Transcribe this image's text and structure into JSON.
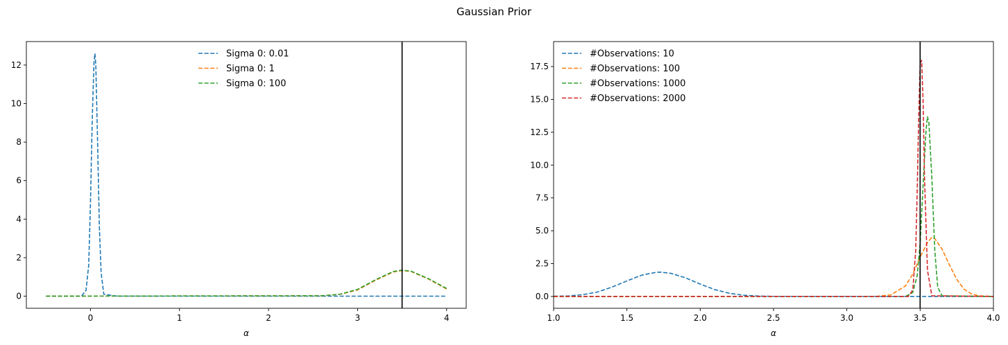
{
  "suptitle": "Gaussian Prior",
  "chart_data": [
    {
      "type": "line",
      "title": "",
      "xlabel": "α",
      "ylabel": "",
      "xlim": [
        -0.72,
        4.22
      ],
      "ylim": [
        -0.63,
        13.22
      ],
      "xticks": [
        0,
        1,
        2,
        3,
        4
      ],
      "yticks": [
        0,
        2,
        4,
        6,
        8,
        10,
        12
      ],
      "grid": false,
      "legend_position": "upper-center",
      "vline": 3.5,
      "series": [
        {
          "name": "Sigma 0: 0.01",
          "color": "#1f77b4",
          "x": [
            -0.5,
            -0.3,
            -0.1,
            -0.05,
            -0.02,
            0.0,
            0.02,
            0.04,
            0.05,
            0.06,
            0.08,
            0.1,
            0.12,
            0.15,
            0.3,
            1.0,
            2.0,
            3.0,
            4.0
          ],
          "y": [
            0,
            0,
            0,
            0.3,
            1.6,
            4.8,
            9.2,
            12.2,
            12.6,
            12.0,
            8.0,
            3.6,
            1.2,
            0.1,
            0,
            0,
            0,
            0,
            0
          ]
        },
        {
          "name": "Sigma 0: 1",
          "color": "#ff7f0e",
          "x": [
            -0.5,
            2.6,
            2.8,
            3.0,
            3.2,
            3.4,
            3.5,
            3.6,
            3.8,
            4.0
          ],
          "y": [
            0,
            0.02,
            0.09,
            0.32,
            0.82,
            1.25,
            1.33,
            1.28,
            0.88,
            0.37
          ]
        },
        {
          "name": "Sigma 0: 100",
          "color": "#2ca02c",
          "x": [
            -0.5,
            2.6,
            2.8,
            3.0,
            3.2,
            3.4,
            3.5,
            3.6,
            3.8,
            4.0
          ],
          "y": [
            0,
            0.02,
            0.1,
            0.35,
            0.85,
            1.28,
            1.35,
            1.3,
            0.9,
            0.4
          ]
        }
      ]
    },
    {
      "type": "line",
      "title": "",
      "xlabel": "α",
      "ylabel": "",
      "xlim": [
        1.0,
        4.0
      ],
      "ylim": [
        -0.9,
        19.4
      ],
      "xticks": [
        1.0,
        1.5,
        2.0,
        2.5,
        3.0,
        3.5,
        4.0
      ],
      "yticks": [
        0.0,
        2.5,
        5.0,
        7.5,
        10.0,
        12.5,
        15.0,
        17.5
      ],
      "grid": false,
      "legend_position": "upper-left",
      "vline": 3.5,
      "series": [
        {
          "name": "#Observations: 10",
          "color": "#1f77b4",
          "x": [
            1.0,
            1.1,
            1.2,
            1.3,
            1.4,
            1.5,
            1.6,
            1.7,
            1.73,
            1.8,
            1.9,
            2.0,
            2.1,
            2.2,
            2.3,
            2.4,
            2.5,
            2.7,
            4.0
          ],
          "y": [
            0.02,
            0.04,
            0.14,
            0.34,
            0.72,
            1.18,
            1.62,
            1.84,
            1.85,
            1.76,
            1.42,
            0.94,
            0.52,
            0.24,
            0.09,
            0.03,
            0.01,
            0,
            0
          ]
        },
        {
          "name": "#Observations: 100",
          "color": "#ff7f0e",
          "x": [
            1.0,
            3.2,
            3.3,
            3.4,
            3.45,
            3.5,
            3.55,
            3.58,
            3.6,
            3.65,
            3.7,
            3.75,
            3.8,
            3.85,
            3.9,
            4.0
          ],
          "y": [
            0,
            0.01,
            0.12,
            0.8,
            1.7,
            3.0,
            4.1,
            4.5,
            4.4,
            3.6,
            2.4,
            1.3,
            0.55,
            0.2,
            0.05,
            0
          ]
        },
        {
          "name": "#Observations: 1000",
          "color": "#2ca02c",
          "x": [
            1.0,
            3.4,
            3.45,
            3.48,
            3.5,
            3.52,
            3.54,
            3.55,
            3.56,
            3.58,
            3.6,
            3.62,
            3.65,
            4.0
          ],
          "y": [
            0,
            0,
            0.3,
            1.6,
            4.0,
            8.4,
            12.6,
            13.7,
            13.2,
            9.0,
            3.5,
            0.7,
            0.05,
            0
          ]
        },
        {
          "name": "#Observations: 2000",
          "color": "#d62728",
          "x": [
            1.0,
            3.42,
            3.45,
            3.47,
            3.48,
            3.49,
            3.5,
            3.51,
            3.52,
            3.53,
            3.55,
            3.58,
            4.0
          ],
          "y": [
            0,
            0,
            0.5,
            3.5,
            8.0,
            13.5,
            17.6,
            18.0,
            15.0,
            9.0,
            2.0,
            0.05,
            0
          ]
        }
      ]
    }
  ]
}
